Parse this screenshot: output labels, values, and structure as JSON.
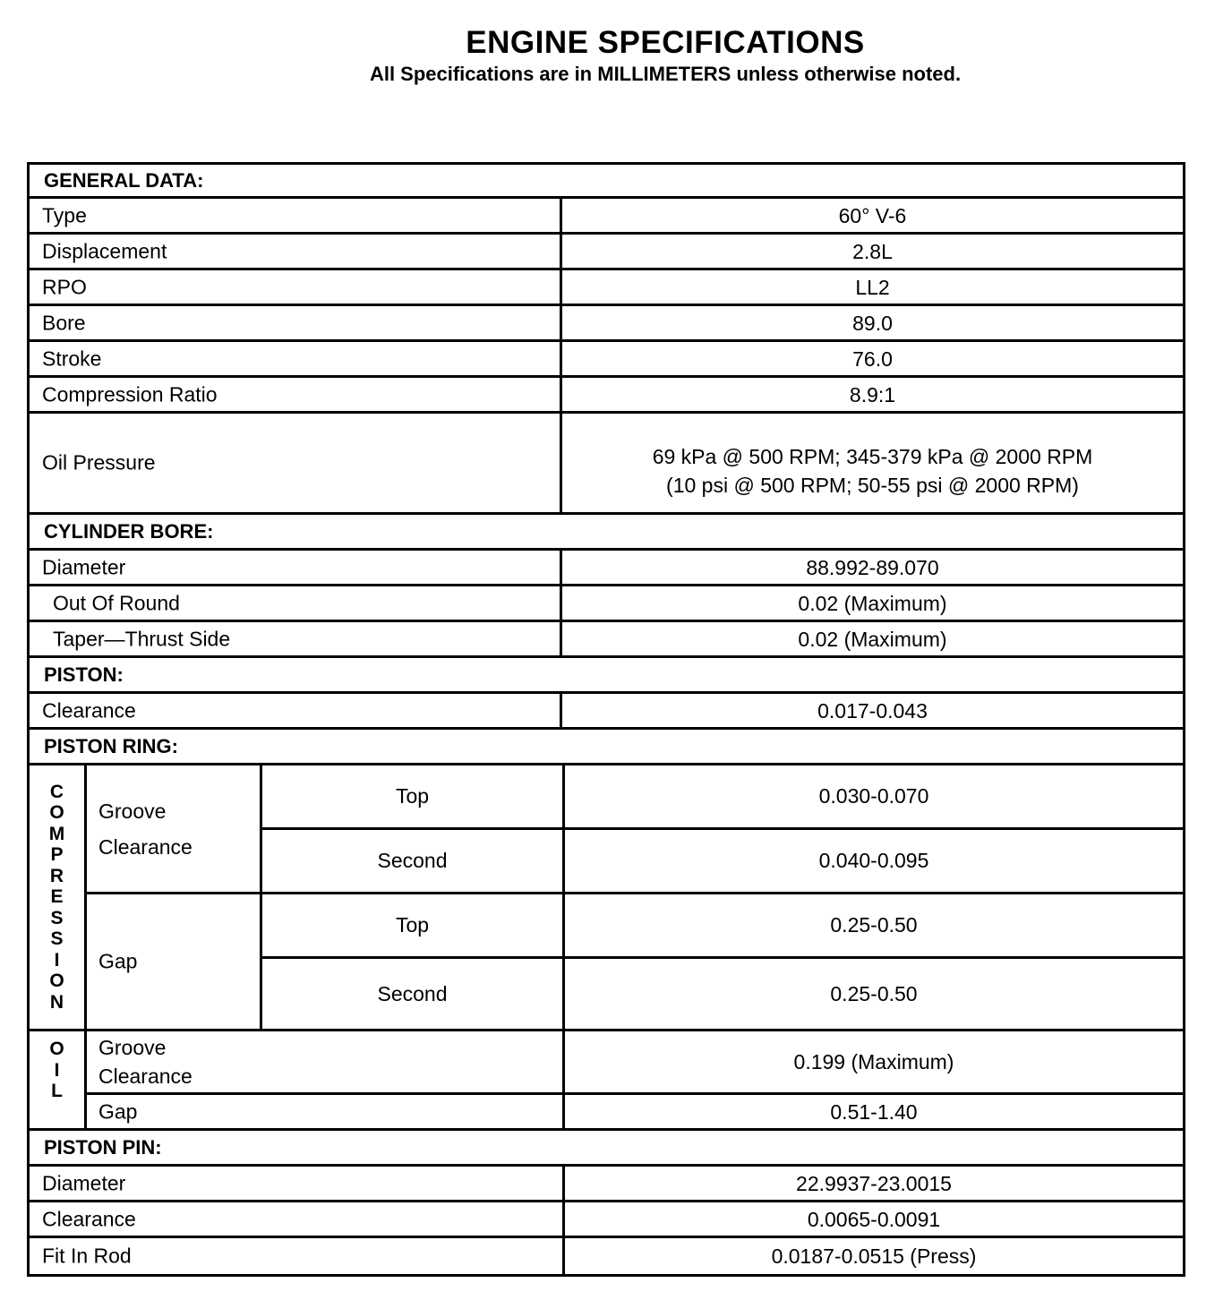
{
  "title": "ENGINE SPECIFICATIONS",
  "subtitle": "All Specifications are in MILLIMETERS unless otherwise noted.",
  "general": {
    "header": "GENERAL DATA:",
    "rows": [
      {
        "label": "Type",
        "value": "60° V-6"
      },
      {
        "label": "Displacement",
        "value": "2.8L"
      },
      {
        "label": "RPO",
        "value": "LL2"
      },
      {
        "label": "Bore",
        "value": "89.0"
      },
      {
        "label": "Stroke",
        "value": "76.0"
      },
      {
        "label": "Compression Ratio",
        "value": "8.9:1"
      },
      {
        "label": "Oil Pressure",
        "value": "69 kPa @ 500 RPM; 345-379 kPa @ 2000 RPM",
        "value2": "(10 psi @ 500 RPM; 50-55 psi @ 2000 RPM)"
      }
    ]
  },
  "cylinder_bore": {
    "header": "CYLINDER BORE:",
    "rows": [
      {
        "label": "Diameter",
        "value": "88.992-89.070"
      },
      {
        "label": "Out Of Round",
        "value": "0.02 (Maximum)"
      },
      {
        "label": "Taper—Thrust Side",
        "value": "0.02 (Maximum)"
      }
    ]
  },
  "piston": {
    "header": "PISTON:",
    "rows": [
      {
        "label": "Clearance",
        "value": "0.017-0.043"
      }
    ]
  },
  "piston_ring": {
    "header": "PISTON RING:",
    "compression": {
      "label": "COMPRESSION",
      "groove_label": "Groove",
      "groove_label2": "Clearance",
      "groove": [
        {
          "position": "Top",
          "value": "0.030-0.070"
        },
        {
          "position": "Second",
          "value": "0.040-0.095"
        }
      ],
      "gap_label": "Gap",
      "gap": [
        {
          "position": "Top",
          "value": "0.25-0.50"
        },
        {
          "position": "Second",
          "value": "0.25-0.50"
        }
      ]
    },
    "oil": {
      "label": "OIL",
      "groove_label": "Groove",
      "groove_label2": "Clearance",
      "groove_value": "0.199 (Maximum)",
      "gap_label": "Gap",
      "gap_value": "0.51-1.40"
    }
  },
  "piston_pin": {
    "header": "PISTON PIN:",
    "rows": [
      {
        "label": "Diameter",
        "value": "22.9937-23.0015"
      },
      {
        "label": "Clearance",
        "value": "0.0065-0.0091"
      },
      {
        "label": "Fit In Rod",
        "value": "0.0187-0.0515 (Press)"
      }
    ]
  }
}
